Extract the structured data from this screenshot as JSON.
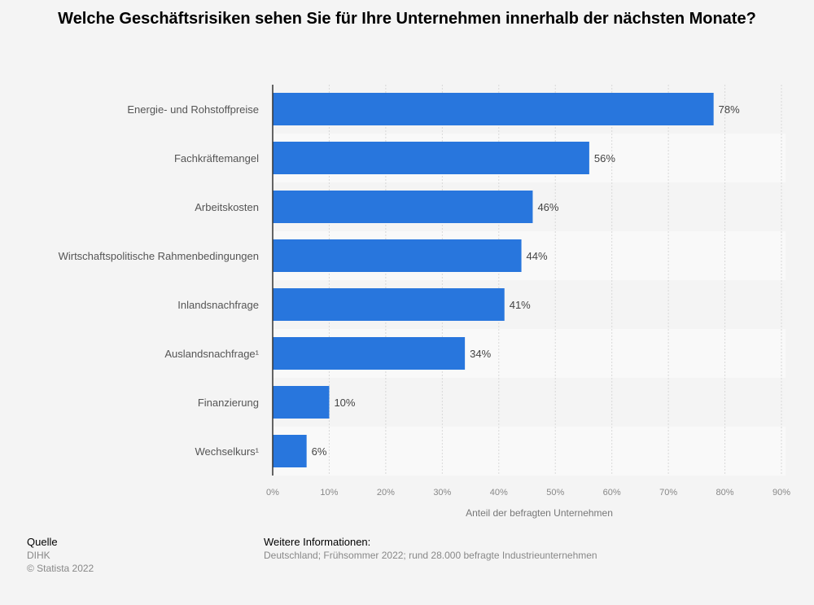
{
  "chart_data": {
    "type": "bar",
    "orientation": "horizontal",
    "title": "Welche Geschäftsrisiken sehen Sie für Ihre Unternehmen innerhalb der nächsten Monate?",
    "categories": [
      "Energie- und Rohstoffpreise",
      "Fachkräftemangel",
      "Arbeitskosten",
      "Wirtschaftspolitische Rahmenbedingungen",
      "Inlandsnachfrage",
      "Auslandsnachfrage¹",
      "Finanzierung",
      "Wechselkurs¹"
    ],
    "values": [
      78,
      56,
      46,
      44,
      41,
      34,
      10,
      6
    ],
    "data_labels": [
      "78%",
      "56%",
      "46%",
      "44%",
      "41%",
      "34%",
      "10%",
      "6%"
    ],
    "xlabel": "Anteil der befragten Unternehmen",
    "ylabel": "",
    "xlim": [
      0,
      90
    ],
    "ticks": [
      "0%",
      "10%",
      "20%",
      "30%",
      "40%",
      "50%",
      "60%",
      "70%",
      "80%",
      "90%"
    ],
    "grid": true,
    "bar_color": "#2876dd"
  },
  "footer": {
    "source_heading": "Quelle",
    "source": "DIHK",
    "copyright": "© Statista 2022",
    "info_heading": "Weitere Informationen:",
    "info": "Deutschland; Frühsommer 2022; rund 28.000 befragte Industrieunternehmen"
  }
}
